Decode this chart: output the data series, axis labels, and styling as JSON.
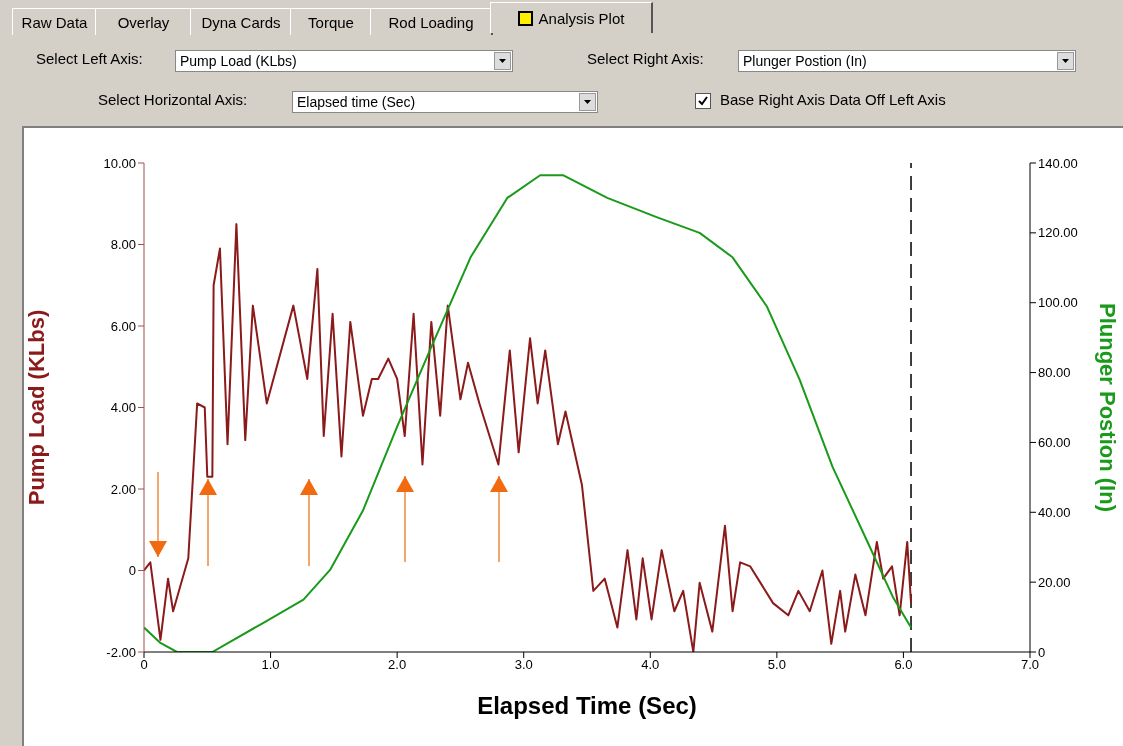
{
  "chart_data": {
    "type": "line",
    "xlabel": "Elapsed Time (Sec)",
    "ylabel": "Pump Load (KLbs)",
    "y2label": "Plunger Postion (In)",
    "annotations": [
      "Raw Data",
      "Overlay",
      "Dyna Cards",
      "Torque",
      "Rod Loading",
      "Analysis Plot",
      "Select Left Axis:",
      "Pump Load (KLbs)",
      "Select Right Axis:",
      "Plunger Postion (In)",
      "Select Horizontal Axis:",
      "Elapsed time (Sec)",
      "Base Right Axis Data Off Left Axis"
    ],
    "xlim": [
      0,
      7
    ],
    "xticks": [
      0,
      {
        "value": 1,
        "label": "1.0"
      },
      {
        "value": 2,
        "label": "2.0"
      },
      {
        "value": 3,
        "label": "3.0"
      },
      {
        "value": 4,
        "label": "4.0"
      },
      {
        "value": 5,
        "label": "5.0"
      },
      {
        "value": 6,
        "label": "6.0"
      },
      {
        "value": 7,
        "label": "7.0"
      }
    ],
    "ylim": [
      -2,
      10
    ],
    "yticks": [
      {
        "value": -2,
        "label": "-2.00"
      },
      0,
      {
        "value": 2,
        "label": "2.00"
      },
      {
        "value": 4,
        "label": "4.00"
      },
      {
        "value": 6,
        "label": "6.00"
      },
      {
        "value": 8,
        "label": "8.00"
      },
      {
        "value": 10,
        "label": "10.00"
      }
    ],
    "y2lim": [
      0,
      140
    ],
    "y2ticks": [
      0,
      {
        "value": 20,
        "label": "20.00"
      },
      {
        "value": 40,
        "label": "40.00"
      },
      {
        "value": 60,
        "label": "60.00"
      },
      {
        "value": 80,
        "label": "80.00"
      },
      {
        "value": 100,
        "label": "100.00"
      },
      {
        "value": 120,
        "label": "120.00"
      },
      {
        "value": 140,
        "label": "140.00"
      }
    ],
    "marker": "none",
    "line_style": "solid",
    "ref_lines": [
      {
        "axis": "x",
        "value": 6.06,
        "color": "#000000",
        "line_style": "dashed"
      }
    ],
    "series": [
      {
        "color": "#8b1a1a",
        "x": [
          0,
          0.05,
          0.13,
          0.19,
          0.23,
          0.35,
          0.42,
          0.48,
          0.5,
          0.54,
          0.55,
          0.6,
          0.66,
          0.73,
          0.8,
          0.86,
          0.97,
          1.18,
          1.29,
          1.37,
          1.42,
          1.49,
          1.56,
          1.63,
          1.73,
          1.8,
          1.85,
          1.93,
          2.0,
          2.06,
          2.13,
          2.2,
          2.27,
          2.34,
          2.4,
          2.5,
          2.56,
          2.65,
          2.8,
          2.89,
          2.96,
          3.05,
          3.11,
          3.17,
          3.27,
          3.33,
          3.46,
          3.55,
          3.64,
          3.74,
          3.82,
          3.89,
          3.94,
          4.01,
          4.09,
          4.19,
          4.26,
          4.34,
          4.39,
          4.49,
          4.59,
          4.65,
          4.71,
          4.79,
          4.97,
          5.09,
          5.17,
          5.26,
          5.36,
          5.43,
          5.5,
          5.54,
          5.62,
          5.7,
          5.79,
          5.84,
          5.91,
          5.97,
          6.03,
          6.06
        ],
        "values": [
          0,
          0.2,
          -1.7,
          -0.2,
          -1.0,
          0.3,
          4.1,
          4.0,
          2.3,
          2.3,
          7.0,
          7.9,
          3.1,
          8.5,
          3.2,
          6.5,
          4.1,
          6.5,
          4.7,
          7.4,
          3.3,
          6.3,
          2.8,
          6.1,
          3.8,
          4.7,
          4.7,
          5.2,
          4.7,
          3.3,
          6.3,
          2.6,
          6.1,
          3.8,
          6.5,
          4.2,
          5.1,
          4.1,
          2.6,
          5.4,
          2.9,
          5.7,
          4.1,
          5.4,
          3.1,
          3.9,
          2.1,
          -0.5,
          -0.2,
          -1.4,
          0.5,
          -1.2,
          0.3,
          -1.2,
          0.5,
          -1.0,
          -0.5,
          -2.0,
          -0.3,
          -1.5,
          1.1,
          -1.0,
          0.2,
          0.1,
          -0.8,
          -1.1,
          -0.5,
          -1.0,
          0,
          -1.8,
          -0.5,
          -1.5,
          -0.1,
          -1.1,
          0.7,
          -0.2,
          0.1,
          -1.1,
          0.7,
          -0.8
        ]
      },
      {
        "color": "#1a9a1a",
        "axis": "y2",
        "x": [
          0,
          0.13,
          0.26,
          0.54,
          0.68,
          0.94,
          1.26,
          1.47,
          1.73,
          2.0,
          2.26,
          2.58,
          2.87,
          3.13,
          3.31,
          3.66,
          4.05,
          4.39,
          4.65,
          4.92,
          5.18,
          5.44,
          5.71,
          5.92,
          6.06
        ],
        "values": [
          7,
          2.6,
          0,
          0,
          2.9,
          8.3,
          15,
          23.5,
          40.5,
          64.5,
          86.5,
          113,
          130,
          136.5,
          136.5,
          130,
          124.5,
          120,
          113,
          99,
          78,
          53,
          32,
          15.5,
          7
        ]
      }
    ]
  }
}
